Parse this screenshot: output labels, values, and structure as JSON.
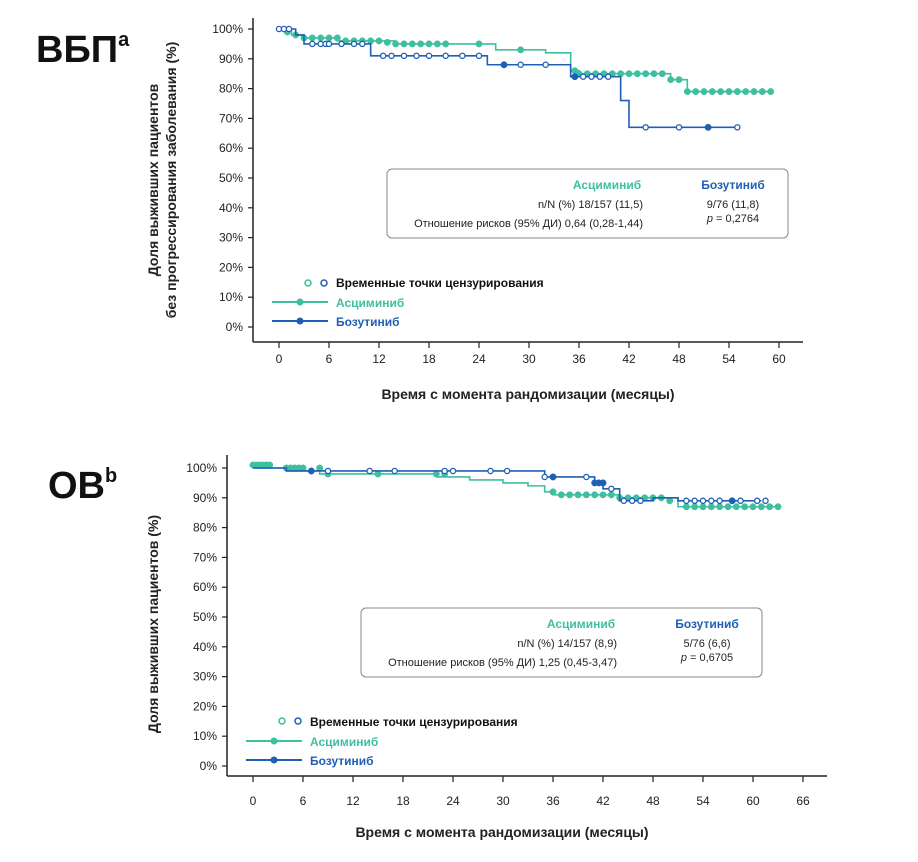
{
  "colors": {
    "asciminib": "#3dbfa0",
    "bosutinib": "#1f5fb5",
    "axis": "#222222",
    "box": "#888888"
  },
  "chart_data": [
    {
      "type": "line",
      "id": "pfs",
      "title": "ВБП",
      "title_sup": "a",
      "xlabel": "Время с момента рандомизации (месяцы)",
      "ylabel_lines": [
        "Доля выживших пациентов",
        "без прогрессирования заболевания (%)"
      ],
      "xlim": [
        -2,
        62
      ],
      "ylim": [
        0,
        100
      ],
      "xticks": [
        0,
        6,
        12,
        18,
        24,
        30,
        36,
        42,
        48,
        54,
        60
      ],
      "yticks": [
        0,
        10,
        20,
        30,
        40,
        50,
        60,
        70,
        80,
        90,
        100
      ],
      "ytick_labels": [
        "0%",
        "10%",
        "20%",
        "30%",
        "40%",
        "50%",
        "60%",
        "70%",
        "80%",
        "90%",
        "100%"
      ],
      "legend": {
        "censor_label": "Временные точки цензурирования",
        "asciminib_label": "Асциминиб",
        "bosutinib_label": "Бозутиниб"
      },
      "stats": {
        "col1_head": "Асциминиб",
        "col2_head": "Бозутиниб",
        "row1_label": "n/N (%) 18/157 (11,5)",
        "row1_col2": "9/76 (11,8)",
        "row2_label": "Отношение рисков (95% ДИ) 0,64 (0,28-1,44)",
        "row2_col2_prefix": "p",
        "row2_col2": " = 0,2764"
      },
      "series": [
        {
          "name": "Асциминиб",
          "steps": [
            [
              0,
              100
            ],
            [
              1.5,
              98
            ],
            [
              3,
              97
            ],
            [
              5,
              97
            ],
            [
              7,
              96
            ],
            [
              12,
              96
            ],
            [
              14,
              95
            ],
            [
              24,
              95
            ],
            [
              26,
              93
            ],
            [
              32,
              92
            ],
            [
              35,
              86
            ],
            [
              36,
              85
            ],
            [
              47,
              83
            ],
            [
              49,
              79
            ],
            [
              59,
              79
            ]
          ],
          "censor": [
            [
              1,
              99
            ],
            [
              2,
              98
            ],
            [
              3,
              97
            ],
            [
              4,
              97
            ],
            [
              5,
              97
            ],
            [
              6,
              97
            ],
            [
              7,
              97
            ],
            [
              8,
              96
            ],
            [
              9,
              96
            ],
            [
              10,
              96
            ],
            [
              11,
              96
            ],
            [
              12,
              96
            ],
            [
              13,
              95.5
            ],
            [
              14,
              95
            ],
            [
              15,
              95
            ],
            [
              16,
              95
            ],
            [
              17,
              95
            ],
            [
              18,
              95
            ],
            [
              19,
              95
            ],
            [
              20,
              95
            ],
            [
              24,
              95
            ],
            [
              29,
              93
            ],
            [
              35.5,
              86
            ],
            [
              36,
              85
            ],
            [
              37,
              85
            ],
            [
              38,
              85
            ],
            [
              39,
              85
            ],
            [
              40,
              85
            ],
            [
              41,
              85
            ],
            [
              42,
              85
            ],
            [
              43,
              85
            ],
            [
              44,
              85
            ],
            [
              45,
              85
            ],
            [
              46,
              85
            ],
            [
              47,
              83
            ],
            [
              48,
              83
            ],
            [
              49,
              79
            ],
            [
              50,
              79
            ],
            [
              51,
              79
            ],
            [
              52,
              79
            ],
            [
              53,
              79
            ],
            [
              54,
              79
            ],
            [
              55,
              79
            ],
            [
              56,
              79
            ],
            [
              57,
              79
            ],
            [
              58,
              79
            ],
            [
              59,
              79
            ]
          ]
        },
        {
          "name": "Бозутиниб",
          "steps": [
            [
              0,
              100
            ],
            [
              2,
              98
            ],
            [
              3,
              95
            ],
            [
              7,
              95
            ],
            [
              9,
              95
            ],
            [
              11,
              91
            ],
            [
              25,
              88
            ],
            [
              27,
              88
            ],
            [
              35,
              84
            ],
            [
              40,
              84
            ],
            [
              41,
              76
            ],
            [
              42,
              67
            ],
            [
              55,
              67
            ]
          ],
          "censor": [
            [
              0,
              100
            ],
            [
              0.6,
              100
            ],
            [
              1.2,
              100
            ],
            [
              4,
              95
            ],
            [
              5,
              95
            ],
            [
              5.6,
              95
            ],
            [
              6,
              95
            ],
            [
              7.5,
              95
            ],
            [
              9,
              95
            ],
            [
              10,
              95
            ],
            [
              12.5,
              91
            ],
            [
              13.5,
              91
            ],
            [
              15,
              91
            ],
            [
              16.5,
              91
            ],
            [
              18,
              91
            ],
            [
              20,
              91
            ],
            [
              22,
              91
            ],
            [
              24,
              91
            ],
            [
              27,
              88
            ],
            [
              29,
              88
            ],
            [
              32,
              88
            ],
            [
              35.5,
              84
            ],
            [
              36.5,
              84
            ],
            [
              37.5,
              84
            ],
            [
              38.5,
              84
            ],
            [
              39.5,
              84
            ],
            [
              44,
              67
            ],
            [
              48,
              67
            ],
            [
              51.5,
              67
            ],
            [
              55,
              67
            ]
          ],
          "censor_filled_x": [
            8.5,
            27,
            35.5,
            41,
            43.5,
            51.5
          ]
        }
      ]
    },
    {
      "type": "line",
      "id": "os",
      "title": "ОВ",
      "title_sup": "b",
      "xlabel": "Время с момента рандомизации (месяцы)",
      "ylabel_lines": [
        "Доля выживших пациентов (%)"
      ],
      "xlim": [
        -2,
        68
      ],
      "ylim": [
        0,
        100
      ],
      "xticks": [
        0,
        6,
        12,
        18,
        24,
        30,
        36,
        42,
        48,
        54,
        60,
        66
      ],
      "yticks": [
        0,
        10,
        20,
        30,
        40,
        50,
        60,
        70,
        80,
        90,
        100
      ],
      "ytick_labels": [
        "0%",
        "10%",
        "20%",
        "30%",
        "40%",
        "50%",
        "60%",
        "70%",
        "80%",
        "90%",
        "100%"
      ],
      "legend": {
        "censor_label": "Временные точки цензурирования",
        "asciminib_label": "Асциминиб",
        "bosutinib_label": "Бозутиниб"
      },
      "stats": {
        "col1_head": "Асциминиб",
        "col2_head": "Бозутиниб",
        "row1_label": "n/N (%) 14/157 (8,9)",
        "row1_col2": "5/76 (6,6)",
        "row2_label": "Отношение рисков (95% ДИ) 1,25 (0,45-3,47)",
        "row2_col2_prefix": "p",
        "row2_col2": " = 0,6705"
      },
      "series": [
        {
          "name": "Асциминиб",
          "steps": [
            [
              0,
              100
            ],
            [
              4,
              99
            ],
            [
              8,
              98
            ],
            [
              16,
              98
            ],
            [
              22,
              97
            ],
            [
              26,
              96
            ],
            [
              30,
              95
            ],
            [
              33,
              94
            ],
            [
              35,
              92
            ],
            [
              36,
              91
            ],
            [
              44,
              90
            ],
            [
              51,
              87
            ],
            [
              63,
              87
            ]
          ],
          "censor": [
            [
              0,
              101
            ],
            [
              0.4,
              101
            ],
            [
              0.8,
              101
            ],
            [
              1.2,
              101
            ],
            [
              1.6,
              101
            ],
            [
              2,
              101
            ],
            [
              4,
              100
            ],
            [
              4.5,
              100
            ],
            [
              5,
              100
            ],
            [
              5.5,
              100
            ],
            [
              6,
              100
            ],
            [
              8,
              100
            ],
            [
              9,
              98
            ],
            [
              15,
              98
            ],
            [
              22,
              98
            ],
            [
              23,
              98
            ],
            [
              36,
              92
            ],
            [
              37,
              91
            ],
            [
              38,
              91
            ],
            [
              39,
              91
            ],
            [
              40,
              91
            ],
            [
              41,
              91
            ],
            [
              42,
              91
            ],
            [
              43,
              91
            ],
            [
              44,
              90
            ],
            [
              45,
              90
            ],
            [
              46,
              90
            ],
            [
              47,
              90
            ],
            [
              48,
              90
            ],
            [
              49,
              90
            ],
            [
              50,
              89
            ],
            [
              52,
              87
            ],
            [
              53,
              87
            ],
            [
              54,
              87
            ],
            [
              55,
              87
            ],
            [
              56,
              87
            ],
            [
              57,
              87
            ],
            [
              58,
              87
            ],
            [
              59,
              87
            ],
            [
              60,
              87
            ],
            [
              61,
              87
            ],
            [
              62,
              87
            ],
            [
              63,
              87
            ]
          ]
        },
        {
          "name": "Бозутиниб",
          "steps": [
            [
              0,
              100
            ],
            [
              4,
              99
            ],
            [
              34,
              99
            ],
            [
              35,
              97
            ],
            [
              41,
              95
            ],
            [
              42,
              93
            ],
            [
              44,
              89
            ],
            [
              47,
              89
            ],
            [
              48,
              90
            ],
            [
              51,
              89
            ],
            [
              61,
              89
            ]
          ],
          "censor": [
            [
              7,
              99
            ],
            [
              9,
              99
            ],
            [
              14,
              99
            ],
            [
              17,
              99
            ],
            [
              23,
              99
            ],
            [
              24,
              99
            ],
            [
              28.5,
              99
            ],
            [
              30.5,
              99
            ],
            [
              35,
              97
            ],
            [
              36,
              97
            ],
            [
              40,
              97
            ],
            [
              41,
              95
            ],
            [
              41.5,
              95
            ],
            [
              42,
              95
            ],
            [
              43,
              93
            ],
            [
              44.5,
              89
            ],
            [
              45.5,
              89
            ],
            [
              46.5,
              89
            ],
            [
              52,
              89
            ],
            [
              53,
              89
            ],
            [
              54,
              89
            ],
            [
              55,
              89
            ],
            [
              56,
              89
            ],
            [
              57.5,
              89
            ],
            [
              58.5,
              89
            ],
            [
              60.5,
              89
            ],
            [
              61.5,
              89
            ]
          ],
          "censor_filled_x": [
            7,
            36,
            41,
            41.5,
            42,
            57.5
          ]
        }
      ]
    }
  ]
}
